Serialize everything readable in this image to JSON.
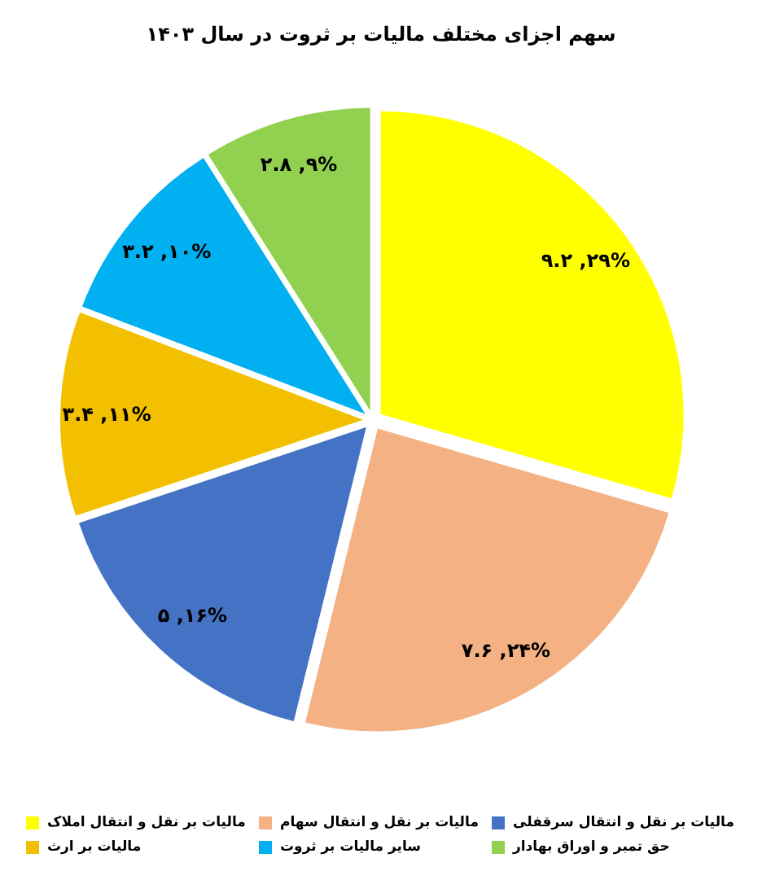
{
  "chart_data": {
    "type": "pie",
    "title": "سهم اجزای مختلف مالیات بر ثروت در سال ۱۴۰۳",
    "categories": [
      "مالیات بر نقل و انتقال املاک",
      "مالیات بر نقل و انتقال سهام",
      "مالیات بر نقل و انتقال سرقفلی",
      "مالیات بر ارث",
      "سایر مالیات بر ثروت",
      "حق تمبر و اوراق بهادار"
    ],
    "values": [
      9.2,
      7.6,
      5,
      3.4,
      3.2,
      2.8
    ],
    "value_labels": [
      "۹.۲ ,۲۹%",
      "۷.۶ ,۲۴%",
      "۵ ,۱۶%",
      "۳.۴ ,۱۱%",
      "۳.۲ ,۱۰%",
      "۲.۸ ,۹%"
    ],
    "colors": [
      "#ffff00",
      "#f4b183",
      "#4472c4",
      "#f2c000",
      "#00b0f0",
      "#92d050"
    ],
    "legend": "bottom"
  }
}
